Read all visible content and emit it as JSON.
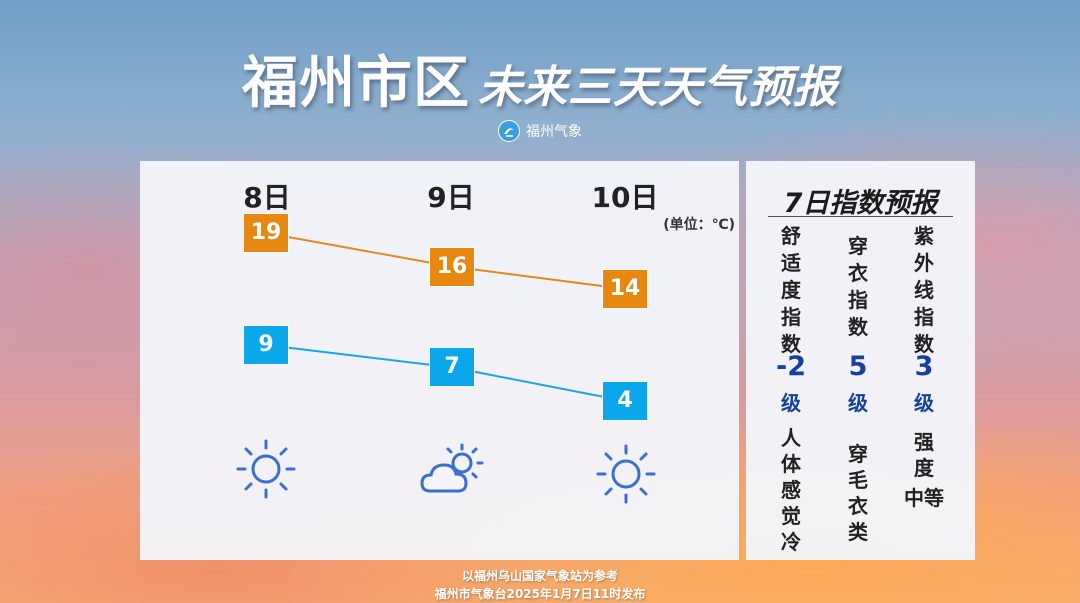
{
  "header": {
    "title_main": "福州市区",
    "title_sub": "未来三天天气预报",
    "brand_logo": "气",
    "brand_name": "福州气象"
  },
  "forecast": {
    "unit": "(单位：℃)",
    "days": [
      {
        "label": "8日",
        "high": 19,
        "low": 9,
        "weather_icon": "sun-icon"
      },
      {
        "label": "9日",
        "high": 16,
        "low": 7,
        "weather_icon": "partly-cloudy-icon"
      },
      {
        "label": "10日",
        "high": 14,
        "low": 4,
        "weather_icon": "sun-icon"
      }
    ],
    "colors": {
      "high": "#e8870f",
      "low": "#0aa7ea",
      "icon": "#3a6fd0"
    }
  },
  "indices": {
    "title": "7日指数预报",
    "items": [
      {
        "name": "舒适度指数",
        "value": "-2",
        "level": "级",
        "desc": "人体感觉冷"
      },
      {
        "name": "穿衣指数",
        "value": "5",
        "level": "级",
        "desc": "穿毛衣类"
      },
      {
        "name": "紫外线指数",
        "value": "3",
        "level": "级",
        "desc_line1": "强度",
        "desc_line2": "中等"
      }
    ]
  },
  "footer": {
    "line1": "以福州乌山国家气象站为参考",
    "line2": "福州市气象台2025年1月7日11时发布"
  }
}
